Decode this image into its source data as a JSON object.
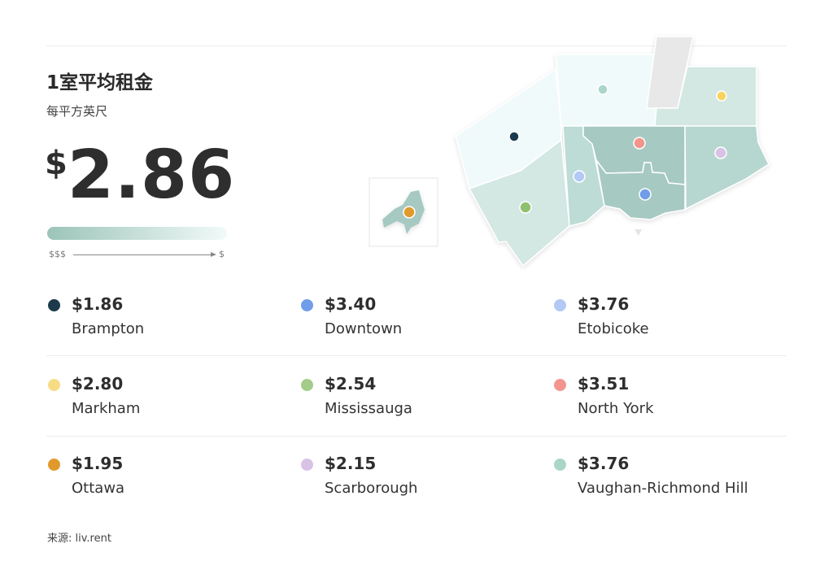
{
  "header": {
    "title": "1室平均租金",
    "subtitle": "每平方英尺"
  },
  "average": {
    "currency": "$",
    "value": "2.86"
  },
  "scale": {
    "left_label": "$$$",
    "right_label": "$",
    "gradient_colors": [
      "#9cc4b8",
      "#f1faf9"
    ]
  },
  "legend": [
    {
      "price": "$1.86",
      "name": "Brampton",
      "color": "#1b3a4b"
    },
    {
      "price": "$3.40",
      "name": "Downtown",
      "color": "#6f9de8"
    },
    {
      "price": "$3.76",
      "name": "Etobicoke",
      "color": "#b3c9f5"
    },
    {
      "price": "$2.80",
      "name": "Markham",
      "color": "#f7dc86"
    },
    {
      "price": "$2.54",
      "name": "Mississauga",
      "color": "#a3cc8a"
    },
    {
      "price": "$3.51",
      "name": "North York",
      "color": "#f3958c"
    },
    {
      "price": "$1.95",
      "name": "Ottawa",
      "color": "#e09a2c"
    },
    {
      "price": "$2.15",
      "name": "Scarborough",
      "color": "#d8c2e6"
    },
    {
      "price": "$3.76",
      "name": "Vaughan-Richmond Hill",
      "color": "#a9d6c8"
    }
  ],
  "source": "来源: liv.rent"
}
